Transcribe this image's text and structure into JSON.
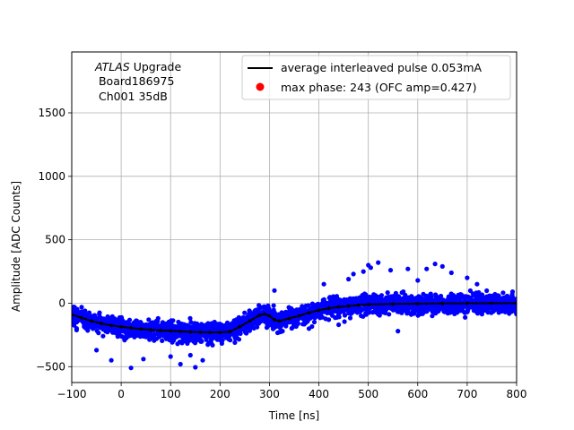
{
  "chart_data": {
    "type": "scatter",
    "title": "",
    "xlabel": "Time [ns]",
    "ylabel": "Amplitude [ADC Counts]",
    "xlim": [
      -100,
      800
    ],
    "ylim": [
      -625,
      1980
    ],
    "xticks": [
      -100,
      0,
      100,
      200,
      300,
      400,
      500,
      600,
      700,
      800
    ],
    "yticks": [
      -500,
      0,
      500,
      1000,
      1500
    ],
    "xtick_labels": [
      "−100",
      "0",
      "100",
      "200",
      "300",
      "400",
      "500",
      "600",
      "700",
      "800"
    ],
    "ytick_labels": [
      "−500",
      "0",
      "500",
      "1000",
      "1500"
    ],
    "grid": true,
    "annotation": {
      "experiment": "ATLAS",
      "suffix": " Upgrade",
      "line2": " Board186975",
      "line3": " Ch001 35dB"
    },
    "legend": {
      "placement": "top-right",
      "entries": [
        {
          "label": "average interleaved pulse 0.053mA",
          "kind": "line",
          "color": "#000000"
        },
        {
          "label": "max phase: 243 (OFC amp=0.427)",
          "kind": "marker",
          "color": "#ff0000"
        }
      ]
    },
    "series": [
      {
        "name": "average interleaved pulse 0.053mA",
        "kind": "line",
        "color": "#000000",
        "x": [
          -100,
          -80,
          -60,
          -40,
          -20,
          0,
          20,
          40,
          60,
          80,
          100,
          120,
          140,
          160,
          180,
          200,
          220,
          240,
          260,
          280,
          290,
          300,
          310,
          320,
          340,
          360,
          380,
          400,
          420,
          440,
          460,
          480,
          500,
          550,
          600,
          650,
          700,
          750,
          800
        ],
        "y": [
          -90,
          -115,
          -140,
          -160,
          -175,
          -185,
          -195,
          -203,
          -210,
          -215,
          -218,
          -222,
          -226,
          -228,
          -230,
          -230,
          -225,
          -185,
          -140,
          -95,
          -85,
          -100,
          -130,
          -140,
          -120,
          -100,
          -75,
          -55,
          -40,
          -30,
          -22,
          -15,
          -10,
          -6,
          -4,
          -2,
          -1,
          0,
          0
        ]
      },
      {
        "name": "samples",
        "kind": "scatter",
        "color": "#0000ff",
        "noise_sigma": 50
      }
    ],
    "outliers": {
      "x": [
        -50,
        -20,
        20,
        45,
        100,
        120,
        140,
        150,
        165,
        230,
        310,
        410,
        460,
        490,
        500,
        505,
        520,
        545,
        580,
        600,
        618,
        635,
        650,
        668,
        700,
        720,
        380,
        440,
        560,
        470
      ],
      "y": [
        -370,
        -450,
        -510,
        -440,
        -420,
        -480,
        -410,
        -505,
        -450,
        -310,
        100,
        150,
        190,
        250,
        300,
        280,
        320,
        260,
        270,
        180,
        270,
        310,
        290,
        240,
        200,
        150,
        -200,
        -170,
        -220,
        230
      ]
    }
  }
}
